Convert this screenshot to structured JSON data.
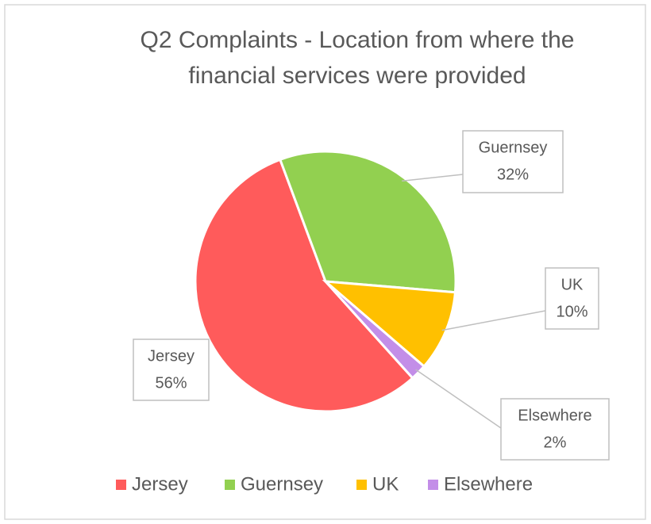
{
  "chart_data": {
    "type": "pie",
    "title": "Q2 Complaints - Location from where the financial services were provided",
    "categories": [
      "Jersey",
      "Guernsey",
      "UK",
      "Elsewhere"
    ],
    "values": [
      56,
      32,
      10,
      2
    ],
    "value_labels": [
      "56%",
      "32%",
      "10%",
      "2%"
    ],
    "colors": [
      "#ff5b5b",
      "#92d050",
      "#ffc000",
      "#c38ee8"
    ],
    "legend": "bottom"
  }
}
